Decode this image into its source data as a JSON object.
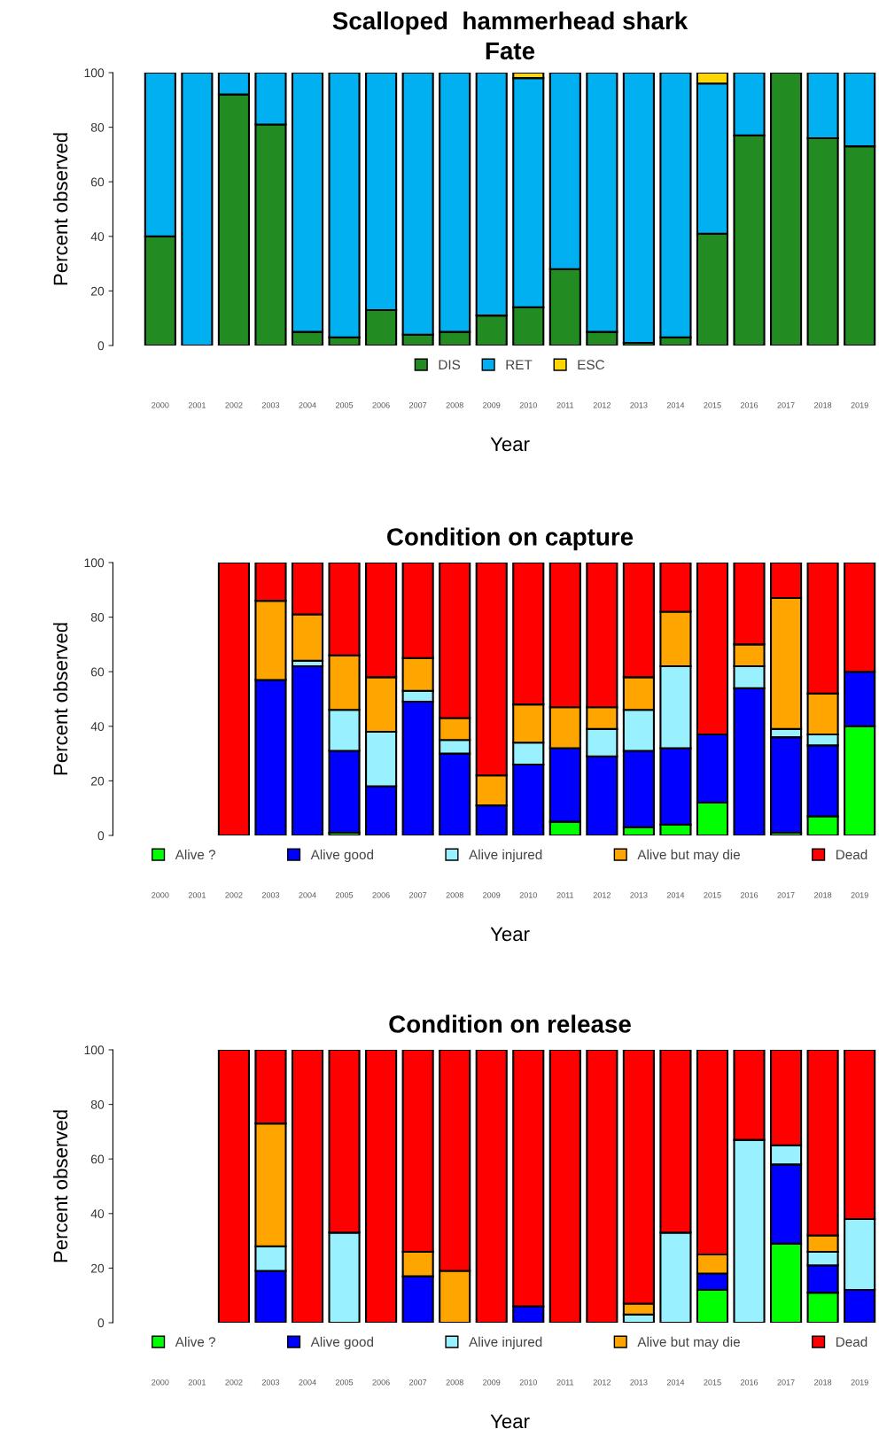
{
  "chart_data": [
    {
      "type": "bar",
      "stacked": true,
      "title": "Scalloped  hammerhead shark",
      "subtitle": "Fate",
      "xlabel": "Year",
      "ylabel": "Percent observed",
      "categories": [
        "2000",
        "2001",
        "2002",
        "2003",
        "2004",
        "2005",
        "2006",
        "2007",
        "2008",
        "2009",
        "2010",
        "2011",
        "2012",
        "2013",
        "2014",
        "2015",
        "2016",
        "2017",
        "2018",
        "2019"
      ],
      "ylim": [
        0,
        100
      ],
      "yticks": [
        0,
        20,
        40,
        60,
        80,
        100
      ],
      "grid": false,
      "legend": "bottom",
      "series": [
        {
          "name": "DIS",
          "color": "#228b22",
          "values": [
            40,
            0,
            92,
            81,
            5,
            3,
            13,
            4,
            5,
            11,
            14,
            28,
            5,
            1,
            3,
            41,
            77,
            100,
            76,
            73
          ]
        },
        {
          "name": "RET",
          "color": "#00b0f0",
          "values": [
            60,
            100,
            8,
            19,
            95,
            97,
            87,
            96,
            95,
            89,
            84,
            72,
            95,
            99,
            97,
            55,
            23,
            0,
            24,
            27
          ]
        },
        {
          "name": "ESC",
          "color": "#ffd700",
          "values": [
            0,
            0,
            0,
            0,
            0,
            0,
            0,
            0,
            0,
            0,
            2,
            0,
            0,
            0,
            0,
            4,
            0,
            0,
            0,
            0
          ]
        }
      ]
    },
    {
      "type": "bar",
      "stacked": true,
      "title": "Condition on capture",
      "xlabel": "Year",
      "ylabel": "Percent observed",
      "categories": [
        "2000",
        "2001",
        "2002",
        "2003",
        "2004",
        "2005",
        "2006",
        "2007",
        "2008",
        "2009",
        "2010",
        "2011",
        "2012",
        "2013",
        "2014",
        "2015",
        "2016",
        "2017",
        "2018",
        "2019"
      ],
      "ylim": [
        0,
        100
      ],
      "yticks": [
        0,
        20,
        40,
        60,
        80,
        100
      ],
      "grid": false,
      "legend": "bottom",
      "series": [
        {
          "name": "Alive ?",
          "color": "#00ff00",
          "values": [
            null,
            null,
            0,
            0,
            0,
            1,
            0,
            0,
            0,
            0,
            0,
            5,
            0,
            3,
            4,
            12,
            0,
            1,
            7,
            40
          ]
        },
        {
          "name": "Alive good",
          "color": "#0000ff",
          "values": [
            null,
            null,
            0,
            57,
            62,
            30,
            18,
            49,
            30,
            11,
            26,
            27,
            29,
            28,
            28,
            25,
            54,
            35,
            26,
            20
          ]
        },
        {
          "name": "Alive injured",
          "color": "#99f0ff",
          "values": [
            null,
            null,
            0,
            0,
            2,
            15,
            20,
            4,
            5,
            0,
            8,
            0,
            10,
            15,
            30,
            0,
            8,
            3,
            4,
            0
          ]
        },
        {
          "name": "Alive but may die",
          "color": "#ffa500",
          "values": [
            null,
            null,
            0,
            29,
            17,
            20,
            20,
            12,
            8,
            11,
            14,
            15,
            8,
            12,
            20,
            0,
            8,
            48,
            15,
            0
          ]
        },
        {
          "name": "Dead",
          "color": "#ff0000",
          "values": [
            null,
            null,
            100,
            14,
            19,
            34,
            42,
            35,
            57,
            78,
            52,
            53,
            53,
            42,
            18,
            63,
            30,
            13,
            48,
            40
          ]
        }
      ]
    },
    {
      "type": "bar",
      "stacked": true,
      "title": "Condition on release",
      "xlabel": "Year",
      "ylabel": "Percent observed",
      "categories": [
        "2000",
        "2001",
        "2002",
        "2003",
        "2004",
        "2005",
        "2006",
        "2007",
        "2008",
        "2009",
        "2010",
        "2011",
        "2012",
        "2013",
        "2014",
        "2015",
        "2016",
        "2017",
        "2018",
        "2019"
      ],
      "ylim": [
        0,
        100
      ],
      "yticks": [
        0,
        20,
        40,
        60,
        80,
        100
      ],
      "grid": false,
      "legend": "bottom",
      "series": [
        {
          "name": "Alive ?",
          "color": "#00ff00",
          "values": [
            null,
            null,
            0,
            0,
            0,
            0,
            0,
            0,
            0,
            0,
            0,
            0,
            0,
            0,
            0,
            12,
            0,
            29,
            11,
            0
          ]
        },
        {
          "name": "Alive good",
          "color": "#0000ff",
          "values": [
            null,
            null,
            0,
            19,
            0,
            0,
            0,
            17,
            0,
            0,
            6,
            0,
            0,
            0,
            0,
            6,
            0,
            29,
            10,
            12
          ]
        },
        {
          "name": "Alive injured",
          "color": "#99f0ff",
          "values": [
            null,
            null,
            0,
            9,
            0,
            33,
            0,
            0,
            0,
            0,
            0,
            0,
            0,
            3,
            33,
            0,
            67,
            7,
            5,
            26
          ]
        },
        {
          "name": "Alive but may die",
          "color": "#ffa500",
          "values": [
            null,
            null,
            0,
            45,
            0,
            0,
            0,
            9,
            19,
            0,
            0,
            0,
            0,
            4,
            0,
            7,
            0,
            0,
            6,
            0
          ]
        },
        {
          "name": "Dead",
          "color": "#ff0000",
          "values": [
            null,
            null,
            100,
            27,
            100,
            67,
            100,
            74,
            81,
            100,
            94,
            100,
            100,
            93,
            67,
            75,
            33,
            35,
            68,
            62
          ]
        }
      ]
    }
  ]
}
